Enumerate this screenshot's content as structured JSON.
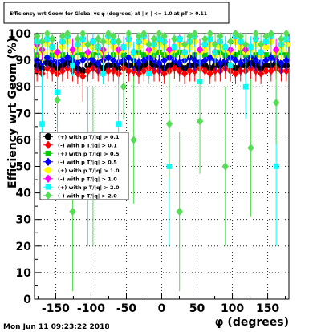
{
  "chart_data": {
    "type": "scatter",
    "title": "Efficiency wrt Geom for Global vs φ (degrees) at | η | <= 1.0 at pT > 0.11",
    "xlabel": "φ (degrees)",
    "ylabel": "Efficiency wrt Geom (%)",
    "xlim": [
      -180,
      180
    ],
    "ylim": [
      0,
      100
    ],
    "x_ticks": [
      -150,
      -100,
      -50,
      0,
      50,
      100,
      150
    ],
    "y_ticks": [
      0,
      10,
      20,
      30,
      40,
      50,
      60,
      70,
      80,
      90,
      100
    ],
    "grid": true,
    "legend_position": "left-middle",
    "timestamp": "Mon Jun 11 09:23:22 2018",
    "series": [
      {
        "name": "(+) with p T/|q| > 0.1",
        "color": "#000000",
        "y": [
          88,
          87,
          89,
          88,
          87,
          88,
          89,
          88,
          87,
          86,
          88,
          89,
          88,
          87,
          88,
          88,
          87,
          89,
          88,
          88,
          87,
          88,
          89,
          88,
          88,
          87,
          88,
          89,
          88,
          87,
          88,
          88,
          89,
          88,
          87,
          88,
          88,
          89,
          88,
          87,
          88,
          88,
          89,
          88,
          87,
          88,
          88,
          89,
          88,
          88
        ]
      },
      {
        "name": "(-) with p T/|q| > 0.1",
        "color": "#ff0000",
        "y": [
          86,
          85,
          87,
          86,
          85,
          86,
          87,
          86,
          85,
          84,
          86,
          87,
          86,
          85,
          86,
          86,
          85,
          87,
          86,
          86,
          85,
          86,
          87,
          86,
          86,
          85,
          86,
          87,
          86,
          85,
          86,
          86,
          87,
          86,
          85,
          86,
          86,
          87,
          86,
          85,
          86,
          86,
          87,
          86,
          85,
          86,
          86,
          87,
          86,
          86
        ]
      },
      {
        "name": "(+) with p T/|q| > 0.5",
        "color": "#00cc00",
        "y": [
          92,
          93,
          91,
          92,
          93,
          92,
          91,
          92,
          93,
          92,
          91,
          92,
          93,
          92,
          91,
          92,
          93,
          92,
          91,
          92,
          93,
          92,
          91,
          92,
          93,
          92,
          91,
          92,
          93,
          92,
          91,
          92,
          93,
          92,
          91,
          92,
          93,
          92,
          91,
          92,
          93,
          92,
          91,
          92,
          93,
          92,
          91,
          92,
          93,
          92
        ]
      },
      {
        "name": "(-) with p T/|q| > 0.5",
        "color": "#0000ff",
        "y": [
          90,
          89,
          91,
          90,
          89,
          90,
          91,
          90,
          89,
          90,
          91,
          90,
          89,
          90,
          91,
          90,
          89,
          90,
          91,
          90,
          89,
          90,
          91,
          90,
          89,
          90,
          91,
          90,
          89,
          90,
          91,
          90,
          89,
          90,
          91,
          90,
          89,
          90,
          91,
          90,
          89,
          90,
          91,
          90,
          89,
          90,
          91,
          90,
          89,
          90
        ]
      },
      {
        "name": "(+) with p T/|q| > 1.0",
        "color": "#ffff00",
        "y": [
          95,
          93,
          96,
          94,
          92,
          95,
          97,
          93,
          94,
          96,
          92,
          95,
          94,
          93,
          97,
          95,
          93,
          94,
          96,
          92,
          95,
          97,
          93,
          94,
          96,
          95,
          93,
          94,
          96,
          92,
          95,
          97,
          93,
          94,
          96,
          92,
          95,
          94,
          93,
          97,
          95,
          93,
          94,
          96,
          92,
          95,
          97,
          93,
          94,
          96
        ]
      },
      {
        "name": "(-) with p T/|q| > 1.0",
        "color": "#ff00ff",
        "y": [
          96,
          94,
          98,
          95,
          93,
          97,
          99,
          94,
          96,
          98,
          93,
          97,
          95,
          94,
          99,
          97,
          94,
          95,
          98,
          93,
          97,
          99,
          94,
          96,
          98,
          97,
          94,
          95,
          98,
          93,
          97,
          99,
          94,
          96,
          98,
          93,
          97,
          95,
          94,
          99,
          97,
          94,
          95,
          98,
          93,
          97,
          99,
          94,
          96,
          98
        ]
      },
      {
        "name": "(+) with p T/|q| > 2.0",
        "color": "#00ffff",
        "y": [
          97,
          66,
          98,
          95,
          78,
          97,
          99,
          88,
          96,
          98,
          50,
          97,
          95,
          85,
          99,
          97,
          66,
          95,
          98,
          93,
          97,
          99,
          85,
          96,
          98,
          97,
          50,
          95,
          98,
          93,
          97,
          99,
          82,
          96,
          98,
          93,
          97,
          95,
          88,
          99,
          97,
          80,
          95,
          98,
          93,
          97,
          99,
          50,
          96,
          98
        ]
      },
      {
        "name": "(-) with p T/|q| > 2.0",
        "color": "#55dd55",
        "y": [
          99,
          97,
          100,
          98,
          75,
          99,
          100,
          33,
          98,
          100,
          96,
          50,
          98,
          97,
          100,
          99,
          97,
          80,
          100,
          60,
          99,
          100,
          96,
          98,
          100,
          99,
          66,
          98,
          33,
          96,
          99,
          100,
          67,
          98,
          100,
          96,
          99,
          50,
          97,
          100,
          99,
          96,
          57,
          100,
          96,
          99,
          100,
          74,
          98,
          100
        ]
      }
    ]
  }
}
